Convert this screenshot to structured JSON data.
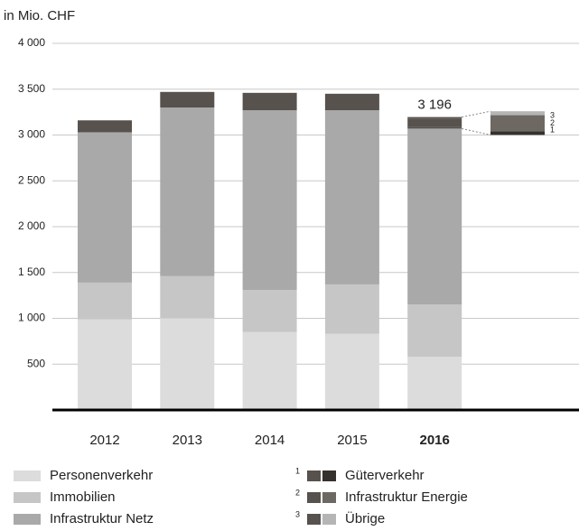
{
  "chart_data": {
    "type": "bar",
    "stacked": true,
    "title": "in Mio. CHF",
    "categories": [
      "2012",
      "2013",
      "2014",
      "2015",
      "2016"
    ],
    "highlight_index": 4,
    "annotation": "3 196",
    "series": [
      {
        "name": "Personenverkehr",
        "color": "#dcdcdc",
        "values": [
          990,
          1000,
          850,
          830,
          580
        ]
      },
      {
        "name": "Immobilien",
        "color": "#c6c6c6",
        "values": [
          400,
          460,
          460,
          540,
          570
        ]
      },
      {
        "name": "Infrastruktur Netz",
        "color": "#a9a9a9",
        "values": [
          1640,
          1840,
          1960,
          1900,
          1920
        ]
      },
      {
        "name": "Güterverkehr",
        "footnote": "1",
        "color": "#57524d",
        "inset_color": "#35312d",
        "values": [
          130,
          170,
          190,
          180,
          20
        ]
      },
      {
        "name": "Infrastruktur Energie",
        "footnote": "2",
        "color": "#57524d",
        "inset_color": "#6e6862",
        "values": [
          null,
          null,
          null,
          null,
          85
        ]
      },
      {
        "name": "Übrige",
        "footnote": "3",
        "color": "#57524d",
        "inset_color": "#b5b5b5",
        "values": [
          null,
          null,
          null,
          null,
          21
        ]
      }
    ],
    "ylim": [
      0,
      4000
    ],
    "yticks": [
      500,
      {
        "value": 1000,
        "label": "1 000"
      },
      {
        "value": 1500,
        "label": "1 500"
      },
      {
        "value": 2000,
        "label": "2 000"
      },
      {
        "value": 2500,
        "label": "2 500"
      },
      {
        "value": 3000,
        "label": "3 000"
      },
      {
        "value": 3500,
        "label": "3 500"
      },
      {
        "value": 4000,
        "label": "4 000"
      }
    ],
    "grid": true
  }
}
